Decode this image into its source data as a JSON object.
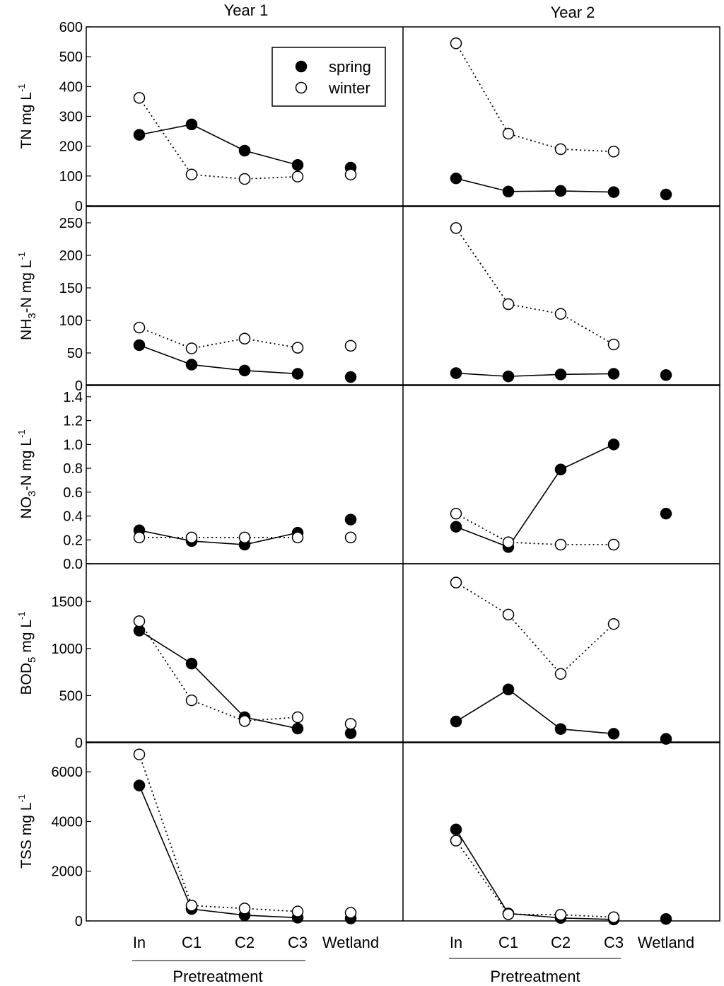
{
  "figure": {
    "columns": [
      "Year 1",
      "Year 2"
    ],
    "categories": [
      "In",
      "C1",
      "C2",
      "C3",
      "Wetland"
    ],
    "group_label": "Pretreatment",
    "legend": [
      {
        "name": "spring",
        "marker": "filled-circle",
        "line": "solid"
      },
      {
        "name": "winter",
        "marker": "open-circle",
        "line": "dotted"
      }
    ],
    "colors": {
      "ink": "#000000",
      "background": "#ffffff"
    }
  },
  "chart_data": [
    {
      "type": "line",
      "panel": "TN",
      "column": "Year 1",
      "ylabel": {
        "pre": "TN mg L",
        "sub": "",
        "post": "",
        "sup": "-1"
      },
      "ylim": [
        0,
        600
      ],
      "yticks": [
        "0",
        "100",
        "200",
        "300",
        "400",
        "500",
        "600"
      ],
      "categories": [
        "In",
        "C1",
        "C2",
        "C3",
        "Wetland"
      ],
      "series": [
        {
          "name": "spring",
          "values": [
            238,
            273,
            185,
            137,
            128
          ]
        },
        {
          "name": "winter",
          "values": [
            362,
            105,
            90,
            98,
            105
          ]
        }
      ]
    },
    {
      "type": "line",
      "panel": "TN",
      "column": "Year 2",
      "ylim": [
        0,
        600
      ],
      "categories": [
        "In",
        "C1",
        "C2",
        "C3",
        "Wetland"
      ],
      "series": [
        {
          "name": "spring",
          "values": [
            92,
            48,
            50,
            46,
            38
          ]
        },
        {
          "name": "winter",
          "values": [
            545,
            242,
            190,
            182,
            null
          ]
        }
      ]
    },
    {
      "type": "line",
      "panel": "NH3-N",
      "column": "Year 1",
      "ylabel": {
        "pre": "NH",
        "sub": "3",
        "post": "-N mg L",
        "sup": "-1"
      },
      "ylim": [
        0,
        275
      ],
      "yticks": [
        "0",
        "50",
        "100",
        "150",
        "200",
        "250"
      ],
      "categories": [
        "In",
        "C1",
        "C2",
        "C3",
        "Wetland"
      ],
      "series": [
        {
          "name": "spring",
          "values": [
            62,
            32,
            23,
            18,
            13
          ]
        },
        {
          "name": "winter",
          "values": [
            89,
            57,
            72,
            58,
            61
          ]
        }
      ]
    },
    {
      "type": "line",
      "panel": "NH3-N",
      "column": "Year 2",
      "ylim": [
        0,
        275
      ],
      "categories": [
        "In",
        "C1",
        "C2",
        "C3",
        "Wetland"
      ],
      "series": [
        {
          "name": "spring",
          "values": [
            19,
            14,
            17,
            18,
            16
          ]
        },
        {
          "name": "winter",
          "values": [
            242,
            125,
            110,
            63,
            null
          ]
        }
      ]
    },
    {
      "type": "line",
      "panel": "NO3-N",
      "column": "Year 1",
      "ylabel": {
        "pre": "NO",
        "sub": "3",
        "post": "-N mg L",
        "sup": "-1"
      },
      "ylim": [
        0,
        1.5
      ],
      "yticks": [
        "0.0",
        "0.2",
        "0.4",
        "0.6",
        "0.8",
        "1.0",
        "1.2",
        "1.4"
      ],
      "categories": [
        "In",
        "C1",
        "C2",
        "C3",
        "Wetland"
      ],
      "series": [
        {
          "name": "spring",
          "values": [
            0.28,
            0.19,
            0.16,
            0.26,
            0.37
          ]
        },
        {
          "name": "winter",
          "values": [
            0.22,
            0.22,
            0.22,
            0.22,
            0.22
          ]
        }
      ]
    },
    {
      "type": "line",
      "panel": "NO3-N",
      "column": "Year 2",
      "ylim": [
        0,
        1.5
      ],
      "categories": [
        "In",
        "C1",
        "C2",
        "C3",
        "Wetland"
      ],
      "series": [
        {
          "name": "spring",
          "values": [
            0.31,
            0.14,
            0.79,
            1.0,
            0.42
          ]
        },
        {
          "name": "winter",
          "values": [
            0.42,
            0.18,
            0.16,
            0.16,
            null
          ]
        }
      ]
    },
    {
      "type": "line",
      "panel": "BOD5",
      "column": "Year 1",
      "ylabel": {
        "pre": "BOD",
        "sub": "5",
        "post": " mg L",
        "sup": "-1"
      },
      "ylim": [
        0,
        1900
      ],
      "yticks": [
        "0",
        "500",
        "1000",
        "1500"
      ],
      "categories": [
        "In",
        "C1",
        "C2",
        "C3",
        "Wetland"
      ],
      "series": [
        {
          "name": "spring",
          "values": [
            1190,
            840,
            270,
            150,
            100
          ]
        },
        {
          "name": "winter",
          "values": [
            1290,
            450,
            230,
            270,
            200
          ]
        }
      ]
    },
    {
      "type": "line",
      "panel": "BOD5",
      "column": "Year 2",
      "ylim": [
        0,
        1900
      ],
      "categories": [
        "In",
        "C1",
        "C2",
        "C3",
        "Wetland"
      ],
      "series": [
        {
          "name": "spring",
          "values": [
            225,
            565,
            145,
            95,
            40
          ]
        },
        {
          "name": "winter",
          "values": [
            1700,
            1360,
            730,
            1260,
            null
          ]
        }
      ]
    },
    {
      "type": "line",
      "panel": "TSS",
      "column": "Year 1",
      "ylabel": {
        "pre": "TSS mg L",
        "sub": "",
        "post": "",
        "sup": "-1"
      },
      "ylim": [
        0,
        7200
      ],
      "yticks": [
        "0",
        "2000",
        "4000",
        "6000"
      ],
      "categories": [
        "In",
        "C1",
        "C2",
        "C3",
        "Wetland"
      ],
      "series": [
        {
          "name": "spring",
          "values": [
            5450,
            480,
            230,
            130,
            100
          ]
        },
        {
          "name": "winter",
          "values": [
            6700,
            620,
            500,
            380,
            330
          ]
        }
      ]
    },
    {
      "type": "line",
      "panel": "TSS",
      "column": "Year 2",
      "ylim": [
        0,
        7200
      ],
      "categories": [
        "In",
        "C1",
        "C2",
        "C3",
        "Wetland"
      ],
      "series": [
        {
          "name": "spring",
          "values": [
            3680,
            300,
            120,
            60,
            80
          ]
        },
        {
          "name": "winter",
          "values": [
            3230,
            270,
            250,
            150,
            null
          ]
        }
      ]
    }
  ]
}
